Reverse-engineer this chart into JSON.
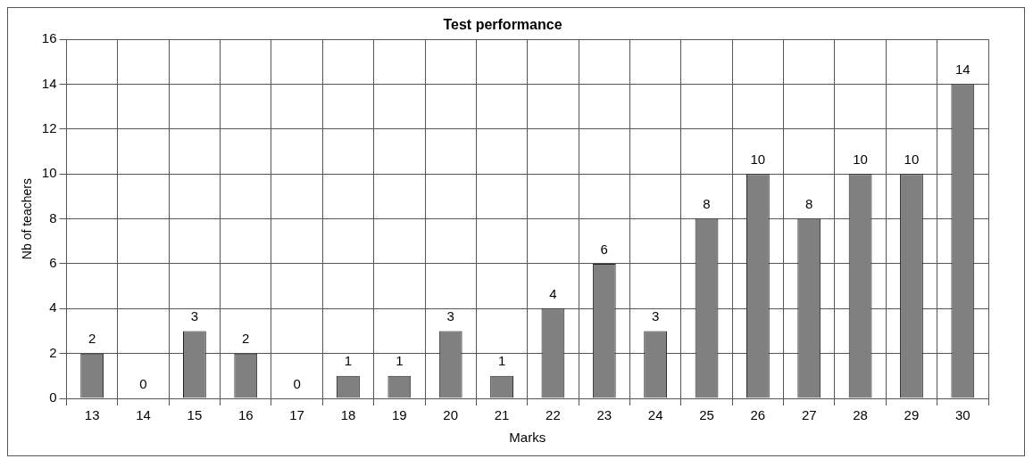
{
  "chart_data": {
    "type": "bar",
    "title": "Test performance",
    "xlabel": "Marks",
    "ylabel": "Nb of teachers",
    "categories": [
      "13",
      "14",
      "15",
      "16",
      "17",
      "18",
      "19",
      "20",
      "21",
      "22",
      "23",
      "24",
      "25",
      "26",
      "27",
      "28",
      "29",
      "30"
    ],
    "values": [
      2,
      0,
      3,
      2,
      0,
      1,
      1,
      3,
      1,
      4,
      6,
      3,
      8,
      10,
      8,
      10,
      10,
      14
    ],
    "color": "#808080",
    "ylim": [
      0,
      16
    ],
    "yticks": [
      0,
      2,
      4,
      6,
      8,
      10,
      12,
      14,
      16
    ],
    "grid": true,
    "data_labels": true,
    "legend": false
  }
}
